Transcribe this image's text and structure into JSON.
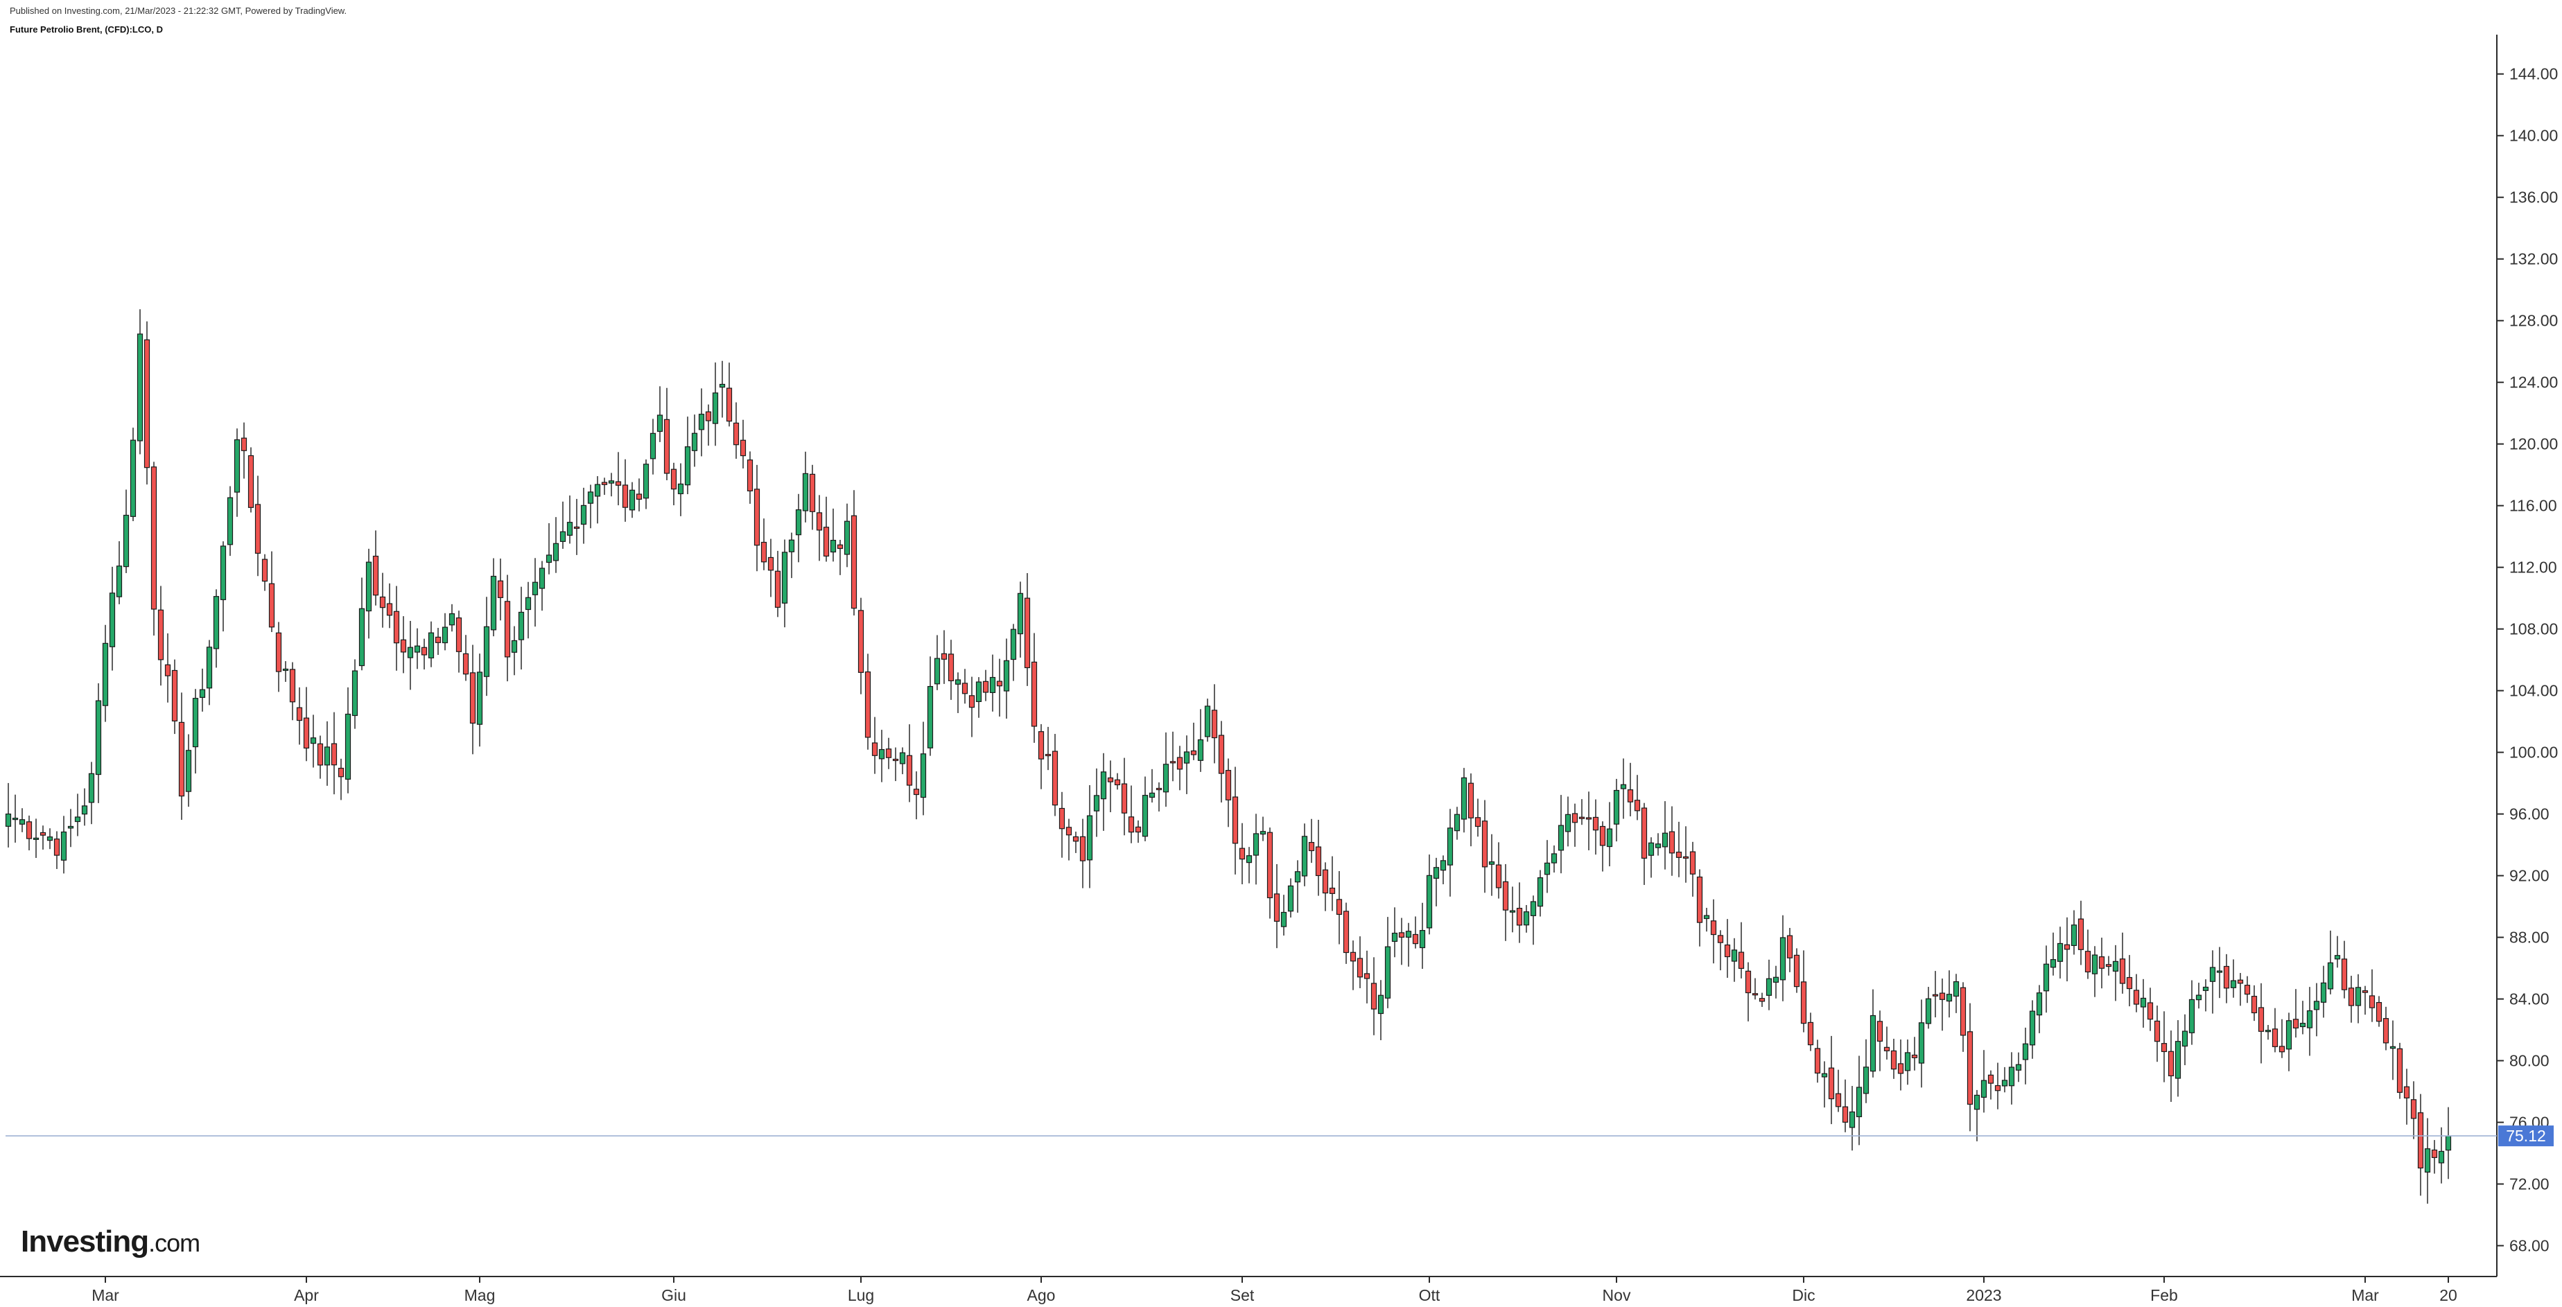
{
  "header": {
    "published": "Published on Investing.com, 21/Mar/2023 - 21:22:32 GMT, Powered by TradingView.",
    "instrument": "Future Petrolio Brent, (CFD):LCO, D"
  },
  "logo": {
    "brand": "Investing",
    "suffix": ".com"
  },
  "colors": {
    "up": "#26a869",
    "down": "#ef5350",
    "outline": "#1a1a1a",
    "price_line": "#9fb2d4",
    "price_label_bg": "#4a78d6"
  },
  "chart_data": {
    "type": "candlestick",
    "title": "Future Petrolio Brent, (CFD):LCO, D",
    "y_range": [
      66,
      147
    ],
    "y_ticks": [
      "68.00",
      "72.00",
      "76.00",
      "80.00",
      "84.00",
      "88.00",
      "92.00",
      "96.00",
      "100.00",
      "104.00",
      "108.00",
      "112.00",
      "116.00",
      "120.00",
      "124.00",
      "128.00",
      "132.00",
      "136.00",
      "140.00",
      "144.00"
    ],
    "x_labels": [
      {
        "label": "Mar",
        "index": 14
      },
      {
        "label": "Apr",
        "index": 43
      },
      {
        "label": "Mag",
        "index": 68
      },
      {
        "label": "Giu",
        "index": 96
      },
      {
        "label": "Lug",
        "index": 123
      },
      {
        "label": "Ago",
        "index": 149
      },
      {
        "label": "Set",
        "index": 178
      },
      {
        "label": "Ott",
        "index": 205
      },
      {
        "label": "Nov",
        "index": 232
      },
      {
        "label": "Dic",
        "index": 259
      },
      {
        "label": "2023",
        "index": 285
      },
      {
        "label": "Feb",
        "index": 311
      },
      {
        "label": "Mar",
        "index": 340
      },
      {
        "label": "20",
        "index": 352
      }
    ],
    "current_price": "75.12",
    "ohlc_anchors": [
      [
        0,
        96
      ],
      [
        8,
        94
      ],
      [
        12,
        98
      ],
      [
        14,
        108
      ],
      [
        17,
        115
      ],
      [
        19,
        127
      ],
      [
        21,
        110
      ],
      [
        25,
        98
      ],
      [
        29,
        107
      ],
      [
        31,
        113
      ],
      [
        33,
        121
      ],
      [
        37,
        111
      ],
      [
        39,
        106
      ],
      [
        44,
        100
      ],
      [
        48,
        99
      ],
      [
        52,
        112
      ],
      [
        56,
        108
      ],
      [
        60,
        106
      ],
      [
        64,
        109
      ],
      [
        67,
        102
      ],
      [
        70,
        112
      ],
      [
        72,
        107
      ],
      [
        76,
        110
      ],
      [
        80,
        114
      ],
      [
        85,
        118
      ],
      [
        90,
        116
      ],
      [
        94,
        122
      ],
      [
        96,
        116
      ],
      [
        100,
        122
      ],
      [
        103,
        123
      ],
      [
        106,
        120
      ],
      [
        108,
        113
      ],
      [
        111,
        110
      ],
      [
        115,
        119
      ],
      [
        118,
        112
      ],
      [
        121,
        115
      ],
      [
        124,
        101
      ],
      [
        128,
        100
      ],
      [
        131,
        98
      ],
      [
        134,
        107
      ],
      [
        138,
        104
      ],
      [
        141,
        104
      ],
      [
        144,
        105
      ],
      [
        146,
        110
      ],
      [
        148,
        102
      ],
      [
        152,
        96
      ],
      [
        155,
        94
      ],
      [
        158,
        99
      ],
      [
        162,
        95
      ],
      [
        165,
        97
      ],
      [
        168,
        99
      ],
      [
        171,
        99
      ],
      [
        173,
        103
      ],
      [
        175,
        98
      ],
      [
        178,
        92
      ],
      [
        181,
        95
      ],
      [
        183,
        88
      ],
      [
        187,
        94
      ],
      [
        190,
        91
      ],
      [
        193,
        88
      ],
      [
        197,
        83
      ],
      [
        200,
        89
      ],
      [
        203,
        88
      ],
      [
        207,
        94
      ],
      [
        210,
        98
      ],
      [
        213,
        93
      ],
      [
        217,
        89
      ],
      [
        221,
        91
      ],
      [
        224,
        96
      ],
      [
        227,
        96
      ],
      [
        230,
        95
      ],
      [
        233,
        98
      ],
      [
        236,
        94
      ],
      [
        239,
        95
      ],
      [
        241,
        94
      ],
      [
        244,
        90
      ],
      [
        247,
        88
      ],
      [
        250,
        86
      ],
      [
        253,
        83
      ],
      [
        256,
        87
      ],
      [
        258,
        85
      ],
      [
        261,
        80
      ],
      [
        264,
        76
      ],
      [
        266,
        77
      ],
      [
        269,
        82
      ],
      [
        272,
        79
      ],
      [
        275,
        81
      ],
      [
        278,
        84
      ],
      [
        281,
        85
      ],
      [
        283,
        78
      ],
      [
        287,
        78
      ],
      [
        290,
        80
      ],
      [
        292,
        84
      ],
      [
        295,
        86
      ],
      [
        298,
        88
      ],
      [
        301,
        86
      ],
      [
        304,
        87
      ],
      [
        307,
        84
      ],
      [
        310,
        81
      ],
      [
        312,
        80
      ],
      [
        315,
        84
      ],
      [
        318,
        86
      ],
      [
        321,
        85
      ],
      [
        324,
        84
      ],
      [
        327,
        81
      ],
      [
        330,
        83
      ],
      [
        333,
        84
      ],
      [
        336,
        86
      ],
      [
        339,
        84
      ],
      [
        342,
        82
      ],
      [
        344,
        80
      ],
      [
        346,
        78
      ],
      [
        348,
        74
      ],
      [
        350,
        74
      ],
      [
        352,
        75.12
      ]
    ]
  }
}
